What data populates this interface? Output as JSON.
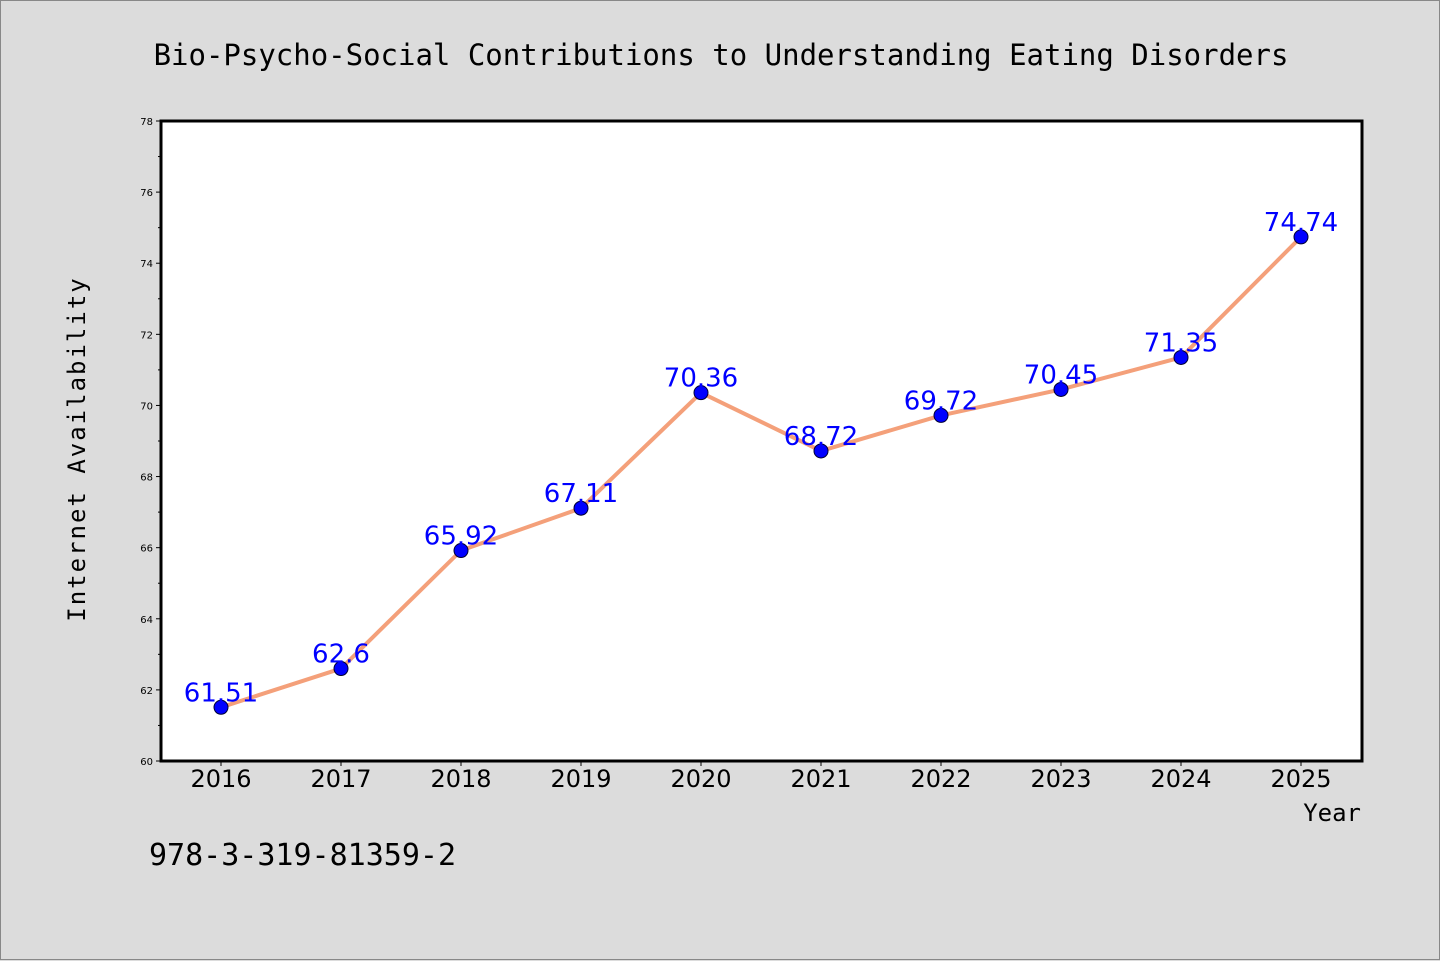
{
  "colors": {
    "background": "#dcdcdc",
    "plot_background": "#ffffff",
    "line": "#f4a07a",
    "marker": "#0000ff",
    "label": "#0000ff"
  },
  "footnote": "978-3-319-81359-2",
  "chart_data": {
    "type": "line",
    "title": "Bio-Psycho-Social Contributions to Understanding Eating Disorders",
    "xlabel": "Year",
    "ylabel": "Internet Availability",
    "categories": [
      "2016",
      "2017",
      "2018",
      "2019",
      "2020",
      "2021",
      "2022",
      "2023",
      "2024",
      "2025"
    ],
    "series": [
      {
        "values": [
          61.51,
          62.6,
          65.92,
          67.11,
          70.36,
          68.72,
          69.72,
          70.45,
          71.35,
          74.74
        ],
        "labels": [
          "61.51",
          "62.6",
          "65.92",
          "67.11",
          "70.36",
          "68.72",
          "69.72",
          "70.45",
          "71.35",
          "74.74"
        ]
      }
    ],
    "ylim": [
      60,
      78
    ],
    "yticks": [
      "60",
      "62",
      "64",
      "66",
      "68",
      "70",
      "72",
      "74",
      "76",
      "78"
    ],
    "grid": false,
    "legend": "none"
  }
}
